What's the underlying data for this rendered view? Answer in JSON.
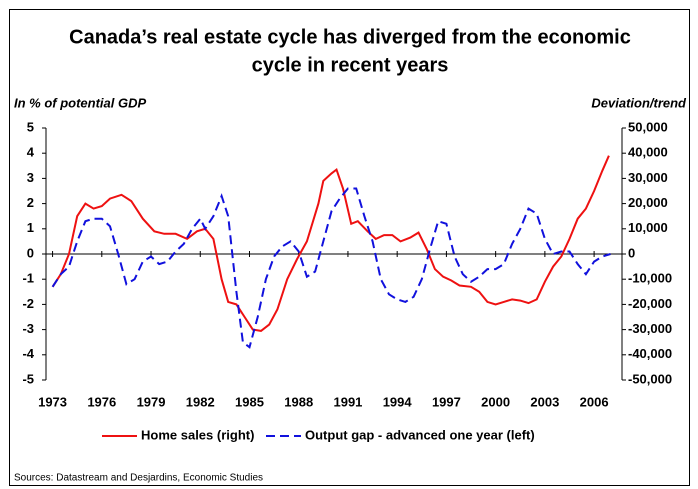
{
  "chart_data": {
    "type": "line",
    "title": [
      "Canada’s real estate cycle has diverged from the economic",
      "cycle in recent years"
    ],
    "y_label": "In % of potential GDP",
    "y2_label": "Deviation/trend",
    "source": "Sources: Datastream and Desjardins, Economic Studies",
    "xlim": [
      1972.6,
      2007.7
    ],
    "xticks": [
      1973,
      1976,
      1979,
      1982,
      1985,
      1988,
      1991,
      1994,
      1997,
      2000,
      2003,
      2006
    ],
    "ylim": [
      -5,
      5
    ],
    "yticks": [
      -5,
      -4,
      -3,
      -2,
      -1,
      0,
      1,
      2,
      3,
      4,
      5
    ],
    "y2lim": [
      -50000,
      50000
    ],
    "y2ticks": [
      {
        "value": -50000,
        "label": "-50,000"
      },
      {
        "value": -40000,
        "label": "-40,000"
      },
      {
        "value": -30000,
        "label": "-30,000"
      },
      {
        "value": -20000,
        "label": "-20,000"
      },
      {
        "value": -10000,
        "label": "-10,000"
      },
      0,
      {
        "value": 10000,
        "label": "10,000"
      },
      {
        "value": 20000,
        "label": "20,000"
      },
      {
        "value": 30000,
        "label": "30,000"
      },
      {
        "value": 40000,
        "label": "40,000"
      },
      {
        "value": 50000,
        "label": "50,000"
      }
    ],
    "series": [
      {
        "name": "Home sales (right)",
        "color": "#ee1111",
        "axis": "y2",
        "dash": false,
        "x": [
          1973.0,
          1973.5,
          1974.0,
          1974.5,
          1975.0,
          1975.5,
          1976.0,
          1976.5,
          1977.2,
          1977.8,
          1978.5,
          1979.2,
          1979.8,
          1980.5,
          1981.2,
          1981.8,
          1982.3,
          1982.8,
          1983.3,
          1983.7,
          1984.2,
          1984.7,
          1985.2,
          1985.7,
          1986.2,
          1986.7,
          1987.3,
          1987.9,
          1988.5,
          1989.2,
          1989.5,
          1990.0,
          1990.3,
          1990.7,
          1991.2,
          1991.6,
          1992.2,
          1992.7,
          1993.2,
          1993.7,
          1994.2,
          1994.8,
          1995.3,
          1995.8,
          1996.3,
          1996.8,
          1997.3,
          1997.8,
          1998.5,
          1999.0,
          1999.5,
          2000.0,
          2000.5,
          2001.0,
          2001.5,
          2002.0,
          2002.5,
          2003.0,
          2003.5,
          2004.0,
          2004.5,
          2005.0,
          2005.5,
          2006.0,
          2006.5,
          2006.9
        ],
        "values": [
          -13000,
          -8000,
          0,
          15000,
          20000,
          18000,
          19000,
          22000,
          23500,
          21000,
          14000,
          9000,
          8000,
          8000,
          6000,
          9000,
          10000,
          6000,
          -10000,
          -19000,
          -20000,
          -25000,
          -30000,
          -30500,
          -28000,
          -22000,
          -10000,
          -2000,
          5000,
          20000,
          29000,
          32000,
          33500,
          26000,
          12000,
          13000,
          9000,
          6000,
          7500,
          7500,
          5000,
          6500,
          8500,
          2000,
          -6000,
          -9000,
          -10500,
          -12500,
          -13000,
          -15000,
          -19000,
          -20000,
          -19000,
          -18000,
          -18500,
          -19500,
          -18000,
          -11000,
          -5000,
          -1000,
          6000,
          14000,
          18000,
          25000,
          33000,
          39000
        ]
      },
      {
        "name": "Output gap - advanced one year (left)",
        "color": "#1111dd",
        "axis": "y",
        "dash": true,
        "x": [
          1973.0,
          1973.5,
          1974.0,
          1974.5,
          1975.0,
          1975.5,
          1976.0,
          1976.5,
          1977.0,
          1977.5,
          1978.0,
          1978.5,
          1979.0,
          1979.5,
          1980.0,
          1980.5,
          1981.0,
          1981.5,
          1982.0,
          1982.3,
          1982.8,
          1983.3,
          1983.7,
          1984.2,
          1984.6,
          1985.0,
          1985.5,
          1986.0,
          1986.5,
          1987.0,
          1987.5,
          1988.0,
          1988.5,
          1989.0,
          1989.5,
          1990.0,
          1990.5,
          1991.0,
          1991.5,
          1992.0,
          1992.5,
          1993.0,
          1993.5,
          1994.0,
          1994.5,
          1995.0,
          1995.5,
          1996.0,
          1996.5,
          1997.0,
          1997.5,
          1998.0,
          1998.5,
          1999.0,
          1999.5,
          2000.0,
          2000.5,
          2001.0,
          2001.5,
          2002.0,
          2002.5,
          2003.0,
          2003.5,
          2004.0,
          2004.5,
          2005.0,
          2005.5,
          2006.0,
          2006.5,
          2007.0
        ],
        "values": [
          -1.3,
          -0.8,
          -0.5,
          0.5,
          1.3,
          1.4,
          1.4,
          1.1,
          0.0,
          -1.2,
          -1.0,
          -0.3,
          -0.1,
          -0.4,
          -0.3,
          0.1,
          0.4,
          1.0,
          1.4,
          1.0,
          1.5,
          2.3,
          1.5,
          -1.5,
          -3.5,
          -3.7,
          -2.5,
          -1.0,
          -0.1,
          0.3,
          0.5,
          0.1,
          -0.9,
          -0.7,
          0.5,
          1.7,
          2.2,
          2.6,
          2.6,
          1.5,
          0.5,
          -1.0,
          -1.6,
          -1.8,
          -1.9,
          -1.7,
          -1.0,
          0.2,
          1.3,
          1.2,
          -0.1,
          -0.8,
          -1.1,
          -0.9,
          -0.6,
          -0.6,
          -0.4,
          0.4,
          1.0,
          1.8,
          1.6,
          0.6,
          0.0,
          0.1,
          0.1,
          -0.4,
          -0.8,
          -0.3,
          -0.1,
          0.0
        ]
      }
    ]
  }
}
